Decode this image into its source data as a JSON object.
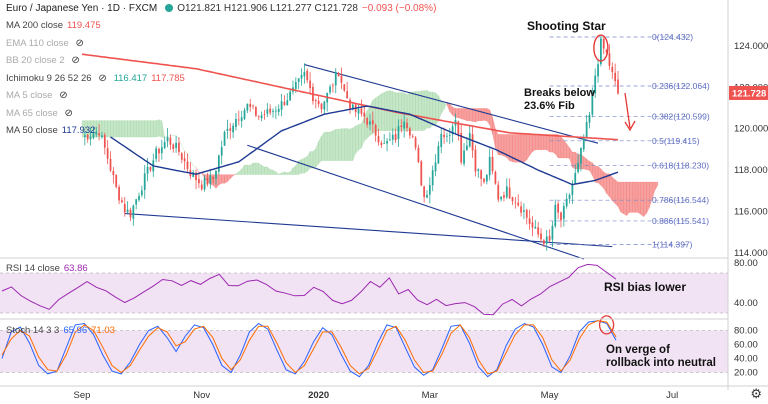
{
  "legend": {
    "symbol": "Euro / Japanese Yen · 1D · FXCM",
    "ohlc": "O121.821  H121.906  L121.277  C121.728",
    "change": "−0.093 (−0.08%)",
    "change_color": "#ef5350",
    "indicators": [
      {
        "name": "MA 200 close",
        "value": "119.475",
        "color": "#ef5350",
        "muted": false,
        "eye": false
      },
      {
        "name": "EMA 110 close",
        "value": "",
        "color": "#999999",
        "muted": true,
        "eye": true
      },
      {
        "name": "BB 20 close 2",
        "value": "",
        "color": "#999999",
        "muted": true,
        "eye": true
      },
      {
        "name": "Ichimoku 9 26 52 26",
        "value": "116.417",
        "value2": "117.785",
        "color": "#26a69a",
        "color2": "#ef5350",
        "muted": false,
        "eye": true
      },
      {
        "name": "MA 5 close",
        "value": "",
        "color": "#999999",
        "muted": true,
        "eye": true
      },
      {
        "name": "MA 65 close",
        "value": "",
        "color": "#999999",
        "muted": true,
        "eye": true
      },
      {
        "name": "MA 50 close",
        "value": "117.932",
        "color": "#1f3a93",
        "muted": false,
        "eye": false
      }
    ]
  },
  "rsi_legend": {
    "name": "RSI 14 close",
    "value": "63.86",
    "color": "#9c27b0"
  },
  "stoch_legend": {
    "name": "Stoch 14 3 3",
    "value": "65.96",
    "value2": "71.03",
    "color": "#2962ff",
    "color2": "#ff6d00"
  },
  "annotations": {
    "shooting_star": "Shooting Star",
    "breaks_below_1": "Breaks below",
    "breaks_below_2": "23.6% Fib",
    "rsi": "RSI bias lower",
    "stoch_1": "On verge of",
    "stoch_2": "rollback into neutral"
  },
  "price_label": {
    "value": "121.728",
    "color": "#ef5350"
  },
  "colors": {
    "up": "#26a69a",
    "down": "#ef5350",
    "ma200": "#ef5350",
    "ma50": "#1f3a93",
    "cloud_bull": "#81c784",
    "cloud_bear": "#ef5350",
    "channel": "#1f3a93",
    "fib": "#7986cb",
    "rsi": "#9c27b0",
    "band": "#e1bee7",
    "stoch_k": "#2962ff",
    "stoch_d": "#ff6d00",
    "annot": "#e53935"
  },
  "chart_data": [
    {
      "type": "candlestick",
      "title": "Euro / Japanese Yen, 1D, FXCM",
      "y_ticks": [
        114,
        116,
        118,
        120,
        122,
        124
      ],
      "ylim": [
        113.75,
        125.4
      ],
      "x_ticks": [
        "Sep",
        "Nov",
        "2020",
        "Mar",
        "May",
        "Jul"
      ],
      "x_tick_index": [
        0,
        42,
        83,
        122,
        164,
        207
      ],
      "grid": false,
      "price_path": [
        [
          0,
          119.6
        ],
        [
          6,
          119.9
        ],
        [
          9,
          118.6
        ],
        [
          12,
          117.1
        ],
        [
          15,
          116.1
        ],
        [
          17,
          115.9
        ],
        [
          19,
          116.6
        ],
        [
          22,
          117.6
        ],
        [
          26,
          118.8
        ],
        [
          30,
          119.5
        ],
        [
          34,
          118.9
        ],
        [
          38,
          117.9
        ],
        [
          42,
          117.3
        ],
        [
          46,
          117.6
        ],
        [
          50,
          119.7
        ],
        [
          54,
          120.5
        ],
        [
          58,
          121.1
        ],
        [
          62,
          120.6
        ],
        [
          66,
          120.8
        ],
        [
          70,
          121.2
        ],
        [
          74,
          121.8
        ],
        [
          78,
          122.6
        ],
        [
          81,
          121.6
        ],
        [
          84,
          121.1
        ],
        [
          87,
          121.9
        ],
        [
          90,
          122.8
        ],
        [
          92,
          121.8
        ],
        [
          95,
          120.9
        ],
        [
          99,
          120.6
        ],
        [
          102,
          120.0
        ],
        [
          106,
          119.2
        ],
        [
          110,
          119.6
        ],
        [
          113,
          120.6
        ],
        [
          116,
          119.6
        ],
        [
          118,
          118.2
        ],
        [
          120,
          116.7
        ],
        [
          122,
          117.4
        ],
        [
          124,
          118.6
        ],
        [
          126,
          119.9
        ],
        [
          128,
          119.5
        ],
        [
          131,
          120.7
        ],
        [
          133,
          118.6
        ],
        [
          136,
          119.8
        ],
        [
          138,
          118.2
        ],
        [
          141,
          117.3
        ],
        [
          143,
          118.4
        ],
        [
          146,
          116.7
        ],
        [
          149,
          117.0
        ],
        [
          152,
          116.6
        ],
        [
          155,
          116.0
        ],
        [
          158,
          115.2
        ],
        [
          161,
          114.7
        ],
        [
          164,
          114.5
        ],
        [
          166,
          116.1
        ],
        [
          168,
          115.6
        ],
        [
          170,
          116.4
        ],
        [
          172,
          117.3
        ],
        [
          174,
          118.2
        ],
        [
          176,
          119.5
        ],
        [
          178,
          120.6
        ],
        [
          180,
          122.6
        ],
        [
          182,
          124.1
        ],
        [
          184,
          123.6
        ],
        [
          186,
          122.6
        ],
        [
          188,
          121.7
        ]
      ],
      "fib_levels": [
        {
          "ratio": "0",
          "value": 124.432
        },
        {
          "ratio": "0.236",
          "value": 122.064
        },
        {
          "ratio": "0.382",
          "value": 120.599
        },
        {
          "ratio": "0.5",
          "value": 119.415
        },
        {
          "ratio": "0.618",
          "value": 118.23
        },
        {
          "ratio": "0.786",
          "value": 116.544
        },
        {
          "ratio": "0.886",
          "value": 115.541
        },
        {
          "ratio": "1",
          "value": 114.397
        }
      ],
      "channel_upper": [
        [
          78,
          123.1
        ],
        [
          181,
          119.3
        ]
      ],
      "channel_lower": [
        [
          58,
          119.2
        ],
        [
          176,
          113.7
        ]
      ],
      "support_line": [
        [
          15,
          115.9
        ],
        [
          186,
          114.3
        ]
      ],
      "series": [
        {
          "name": "MA 200 close",
          "points": [
            [
              0,
              123.6
            ],
            [
              40,
              122.9
            ],
            [
              80,
              121.7
            ],
            [
              110,
              120.8
            ],
            [
              150,
              119.8
            ],
            [
              188,
              119.47
            ]
          ]
        },
        {
          "name": "MA 50 close",
          "points": [
            [
              10,
              119.6
            ],
            [
              25,
              118.2
            ],
            [
              40,
              117.8
            ],
            [
              55,
              118.4
            ],
            [
              70,
              119.9
            ],
            [
              85,
              120.7
            ],
            [
              100,
              121.1
            ],
            [
              115,
              120.7
            ],
            [
              130,
              119.8
            ],
            [
              145,
              119.0
            ],
            [
              160,
              118.0
            ],
            [
              172,
              117.3
            ],
            [
              180,
              117.5
            ],
            [
              188,
              117.9
            ]
          ]
        }
      ]
    },
    {
      "type": "line",
      "title": "RSI 14 close",
      "ylim": [
        25,
        85
      ],
      "y_ticks": [
        40,
        80
      ],
      "band": [
        30,
        70
      ],
      "values": [
        52,
        55,
        49,
        41,
        37,
        35,
        42,
        50,
        56,
        60,
        57,
        52,
        45,
        42,
        44,
        51,
        58,
        62,
        63,
        58,
        61,
        60,
        64,
        68,
        59,
        56,
        62,
        64,
        57,
        53,
        50,
        46,
        49,
        55,
        51,
        44,
        38,
        43,
        52,
        60,
        57,
        65,
        48,
        55,
        42,
        38,
        45,
        36,
        40,
        41,
        35,
        30,
        28,
        38,
        45,
        36,
        44,
        50,
        55,
        62,
        66,
        74,
        80,
        77,
        70,
        63.86
      ]
    },
    {
      "type": "line",
      "title": "Stoch 14 3 3",
      "ylim": [
        5,
        95
      ],
      "y_ticks": [
        20,
        40,
        60,
        80
      ],
      "band": [
        20,
        80
      ],
      "series": [
        {
          "name": "%K",
          "values": [
            40,
            78,
            85,
            62,
            30,
            18,
            22,
            55,
            88,
            90,
            74,
            45,
            22,
            18,
            35,
            60,
            80,
            86,
            70,
            50,
            72,
            88,
            84,
            60,
            30,
            20,
            45,
            78,
            90,
            82,
            52,
            24,
            18,
            36,
            64,
            84,
            74,
            46,
            22,
            14,
            30,
            62,
            88,
            84,
            56,
            28,
            16,
            24,
            54,
            86,
            88,
            62,
            28,
            14,
            24,
            58,
            82,
            90,
            85,
            60,
            28,
            20,
            44,
            78,
            92,
            94,
            90,
            65.96
          ]
        },
        {
          "name": "%D",
          "values": [
            45,
            68,
            80,
            72,
            42,
            24,
            22,
            45,
            78,
            88,
            80,
            56,
            30,
            20,
            30,
            52,
            72,
            84,
            78,
            58,
            64,
            82,
            86,
            70,
            40,
            24,
            38,
            66,
            86,
            86,
            62,
            34,
            20,
            30,
            54,
            78,
            78,
            56,
            30,
            18,
            26,
            52,
            80,
            86,
            66,
            38,
            20,
            22,
            46,
            76,
            88,
            70,
            38,
            18,
            22,
            48,
            74,
            88,
            88,
            70,
            38,
            22,
            38,
            68,
            88,
            94,
            92,
            71.03
          ]
        }
      ]
    }
  ]
}
